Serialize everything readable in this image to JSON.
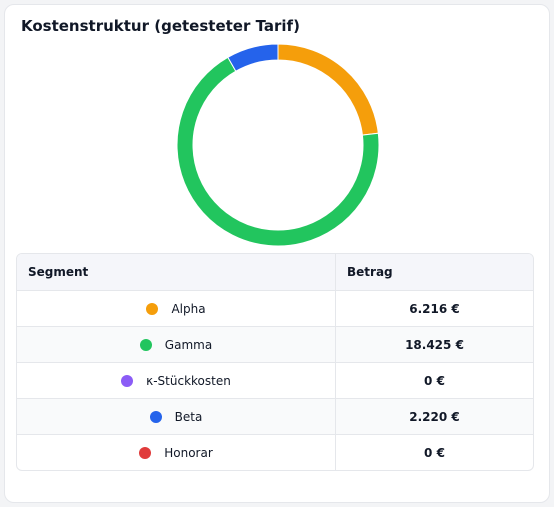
{
  "title": "Kostenstruktur (getesteter Tarif)",
  "table": {
    "headers": [
      "Segment",
      "Betrag"
    ],
    "rows": [
      {
        "label": "Alpha",
        "amount": "6.216 €",
        "color": "#f59e0b"
      },
      {
        "label": "Gamma",
        "amount": "18.425 €",
        "color": "#22c55e"
      },
      {
        "label": "κ-Stückkosten",
        "amount": "0 €",
        "color": "#8b5cf6"
      },
      {
        "label": "Beta",
        "amount": "2.220 €",
        "color": "#2563eb"
      },
      {
        "label": "Honorar",
        "amount": "0 €",
        "color": "#e03b3b"
      }
    ]
  },
  "chart_data": {
    "type": "pie",
    "donut": true,
    "categories": [
      "Alpha",
      "Gamma",
      "κ-Stückkosten",
      "Beta",
      "Honorar"
    ],
    "values": [
      6216,
      18425,
      0,
      2220,
      0
    ],
    "colors": [
      "#f59e0b",
      "#22c55e",
      "#8b5cf6",
      "#2563eb",
      "#e03b3b"
    ],
    "legend": "none"
  }
}
